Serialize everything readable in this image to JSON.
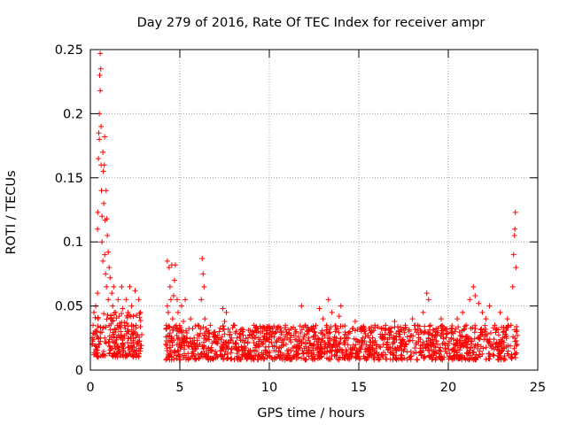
{
  "chart_data": {
    "type": "scatter",
    "title": "Day 279 of 2016, Rate Of TEC Index for receiver ampr",
    "xlabel": "GPS time / hours",
    "ylabel": "ROTI / TECUs",
    "xlim": [
      0,
      25
    ],
    "ylim": [
      0,
      0.25
    ],
    "xticks": [
      0,
      5,
      10,
      15,
      20,
      25
    ],
    "xtick_labels": [
      "0",
      "5",
      "10",
      "15",
      "20",
      "25"
    ],
    "yticks": [
      0,
      0.05,
      0.1,
      0.15,
      0.2,
      0.25
    ],
    "ytick_labels": [
      "0",
      "0.05",
      "0.1",
      "0.15",
      "0.2",
      "0.25"
    ],
    "grid": true,
    "marker": "+",
    "series": [
      {
        "name": "ROTI",
        "color": "#ff0000",
        "points": [
          [
            0.1,
            0.02
          ],
          [
            0.15,
            0.035
          ],
          [
            0.2,
            0.045
          ],
          [
            0.25,
            0.028
          ],
          [
            0.3,
            0.015
          ],
          [
            0.3,
            0.05
          ],
          [
            0.35,
            0.03
          ],
          [
            0.4,
            0.06
          ],
          [
            0.4,
            0.11
          ],
          [
            0.42,
            0.123
          ],
          [
            0.45,
            0.165
          ],
          [
            0.47,
            0.185
          ],
          [
            0.5,
            0.2
          ],
          [
            0.5,
            0.18
          ],
          [
            0.52,
            0.23
          ],
          [
            0.55,
            0.247
          ],
          [
            0.55,
            0.218
          ],
          [
            0.58,
            0.235
          ],
          [
            0.6,
            0.19
          ],
          [
            0.6,
            0.16
          ],
          [
            0.62,
            0.14
          ],
          [
            0.65,
            0.12
          ],
          [
            0.65,
            0.1
          ],
          [
            0.7,
            0.085
          ],
          [
            0.7,
            0.17
          ],
          [
            0.72,
            0.155
          ],
          [
            0.75,
            0.13
          ],
          [
            0.78,
            0.16
          ],
          [
            0.8,
            0.09
          ],
          [
            0.8,
            0.182
          ],
          [
            0.82,
            0.117
          ],
          [
            0.85,
            0.075
          ],
          [
            0.88,
            0.14
          ],
          [
            0.9,
            0.065
          ],
          [
            0.92,
            0.118
          ],
          [
            0.95,
            0.105
          ],
          [
            1.0,
            0.092
          ],
          [
            1.0,
            0.055
          ],
          [
            1.05,
            0.08
          ],
          [
            1.1,
            0.072
          ],
          [
            1.15,
            0.04
          ],
          [
            1.2,
            0.06
          ],
          [
            1.25,
            0.05
          ],
          [
            1.3,
            0.065
          ],
          [
            1.35,
            0.032
          ],
          [
            1.4,
            0.045
          ],
          [
            1.5,
            0.035
          ],
          [
            1.55,
            0.055
          ],
          [
            1.6,
            0.042
          ],
          [
            1.7,
            0.03
          ],
          [
            1.75,
            0.065
          ],
          [
            1.8,
            0.048
          ],
          [
            1.9,
            0.035
          ],
          [
            2.0,
            0.055
          ],
          [
            2.05,
            0.03
          ],
          [
            2.1,
            0.045
          ],
          [
            2.15,
            0.018
          ],
          [
            2.2,
            0.065
          ],
          [
            2.3,
            0.05
          ],
          [
            2.35,
            0.028
          ],
          [
            2.4,
            0.042
          ],
          [
            2.45,
            0.015
          ],
          [
            2.5,
            0.062
          ],
          [
            2.55,
            0.035
          ],
          [
            2.6,
            0.02
          ],
          [
            2.7,
            0.055
          ],
          [
            2.8,
            0.045
          ],
          [
            0.2,
            0.012
          ],
          [
            0.5,
            0.02
          ],
          [
            0.8,
            0.025
          ],
          [
            1.1,
            0.018
          ],
          [
            1.4,
            0.022
          ],
          [
            1.6,
            0.015
          ],
          [
            1.8,
            0.02
          ],
          [
            2.25,
            0.025
          ],
          [
            2.45,
            0.018
          ],
          [
            2.65,
            0.022
          ],
          [
            4.2,
            0.02
          ],
          [
            4.25,
            0.035
          ],
          [
            4.3,
            0.05
          ],
          [
            4.3,
            0.085
          ],
          [
            4.35,
            0.045
          ],
          [
            4.4,
            0.08
          ],
          [
            4.45,
            0.065
          ],
          [
            4.5,
            0.055
          ],
          [
            4.55,
            0.082
          ],
          [
            4.6,
            0.04
          ],
          [
            4.65,
            0.058
          ],
          [
            4.7,
            0.07
          ],
          [
            4.75,
            0.082
          ],
          [
            4.8,
            0.035
          ],
          [
            4.85,
            0.055
          ],
          [
            4.9,
            0.045
          ],
          [
            5.0,
            0.03
          ],
          [
            5.1,
            0.05
          ],
          [
            5.2,
            0.038
          ],
          [
            5.3,
            0.055
          ],
          [
            5.4,
            0.025
          ],
          [
            5.6,
            0.04
          ],
          [
            5.8,
            0.025
          ],
          [
            6.0,
            0.035
          ],
          [
            6.1,
            0.02
          ],
          [
            6.2,
            0.055
          ],
          [
            6.25,
            0.087
          ],
          [
            6.3,
            0.075
          ],
          [
            6.35,
            0.065
          ],
          [
            6.4,
            0.04
          ],
          [
            6.5,
            0.03
          ],
          [
            6.7,
            0.035
          ],
          [
            7.0,
            0.025
          ],
          [
            7.2,
            0.03
          ],
          [
            7.4,
            0.048
          ],
          [
            7.5,
            0.038
          ],
          [
            7.6,
            0.045
          ],
          [
            7.8,
            0.028
          ],
          [
            8.0,
            0.035
          ],
          [
            8.2,
            0.025
          ],
          [
            8.5,
            0.03
          ],
          [
            8.8,
            0.022
          ],
          [
            9.0,
            0.028
          ],
          [
            9.2,
            0.015
          ],
          [
            9.4,
            0.025
          ],
          [
            9.6,
            0.02
          ],
          [
            9.8,
            0.018
          ],
          [
            10.0,
            0.022
          ],
          [
            10.2,
            0.03
          ],
          [
            10.4,
            0.018
          ],
          [
            10.6,
            0.025
          ],
          [
            10.8,
            0.02
          ],
          [
            11.0,
            0.028
          ],
          [
            11.2,
            0.022
          ],
          [
            11.5,
            0.03
          ],
          [
            11.8,
            0.05
          ],
          [
            12.0,
            0.035
          ],
          [
            12.2,
            0.025
          ],
          [
            12.5,
            0.03
          ],
          [
            12.8,
            0.048
          ],
          [
            13.0,
            0.04
          ],
          [
            13.2,
            0.035
          ],
          [
            13.3,
            0.055
          ],
          [
            13.5,
            0.045
          ],
          [
            13.7,
            0.03
          ],
          [
            13.9,
            0.042
          ],
          [
            14.0,
            0.05
          ],
          [
            14.2,
            0.025
          ],
          [
            14.5,
            0.03
          ],
          [
            14.8,
            0.038
          ],
          [
            15.0,
            0.022
          ],
          [
            15.3,
            0.03
          ],
          [
            15.6,
            0.025
          ],
          [
            15.9,
            0.035
          ],
          [
            16.2,
            0.028
          ],
          [
            16.5,
            0.035
          ],
          [
            16.8,
            0.03
          ],
          [
            17.0,
            0.038
          ],
          [
            17.3,
            0.028
          ],
          [
            17.6,
            0.035
          ],
          [
            18.0,
            0.04
          ],
          [
            18.3,
            0.032
          ],
          [
            18.6,
            0.045
          ],
          [
            18.8,
            0.06
          ],
          [
            18.9,
            0.055
          ],
          [
            19.0,
            0.035
          ],
          [
            19.3,
            0.03
          ],
          [
            19.6,
            0.04
          ],
          [
            19.9,
            0.028
          ],
          [
            20.2,
            0.032
          ],
          [
            20.5,
            0.04
          ],
          [
            20.8,
            0.045
          ],
          [
            21.0,
            0.035
          ],
          [
            21.2,
            0.055
          ],
          [
            21.4,
            0.065
          ],
          [
            21.5,
            0.058
          ],
          [
            21.7,
            0.052
          ],
          [
            21.9,
            0.045
          ],
          [
            22.1,
            0.04
          ],
          [
            22.3,
            0.05
          ],
          [
            22.6,
            0.035
          ],
          [
            22.9,
            0.045
          ],
          [
            23.1,
            0.03
          ],
          [
            23.3,
            0.04
          ],
          [
            23.5,
            0.035
          ],
          [
            23.6,
            0.065
          ],
          [
            23.65,
            0.09
          ],
          [
            23.7,
            0.105
          ],
          [
            23.72,
            0.11
          ],
          [
            23.75,
            0.123
          ],
          [
            23.78,
            0.08
          ],
          [
            23.8,
            0.03
          ],
          [
            23.85,
            0.02
          ],
          [
            4.5,
            0.015
          ],
          [
            5.0,
            0.012
          ],
          [
            5.5,
            0.018
          ],
          [
            6.5,
            0.015
          ],
          [
            7.5,
            0.012
          ],
          [
            8.5,
            0.015
          ],
          [
            9.5,
            0.01
          ],
          [
            10.5,
            0.012
          ],
          [
            11.5,
            0.015
          ],
          [
            12.5,
            0.012
          ],
          [
            13.5,
            0.015
          ],
          [
            14.5,
            0.012
          ],
          [
            15.5,
            0.01
          ],
          [
            16.5,
            0.012
          ],
          [
            17.5,
            0.015
          ],
          [
            18.5,
            0.012
          ],
          [
            19.5,
            0.015
          ],
          [
            20.5,
            0.012
          ],
          [
            21.5,
            0.01
          ],
          [
            22.5,
            0.012
          ],
          [
            23.5,
            0.01
          ],
          [
            11.0,
            0.015
          ],
          [
            13.8,
            0.018
          ],
          [
            16.0,
            0.02
          ],
          [
            19.0,
            0.02
          ],
          [
            21.0,
            0.018
          ]
        ]
      }
    ],
    "dense_bands": [
      {
        "x_start": 0.1,
        "x_end": 2.9,
        "y_low": 0.01,
        "y_high": 0.045
      },
      {
        "x_start": 4.2,
        "x_end": 23.9,
        "y_low": 0.008,
        "y_high": 0.035
      }
    ]
  }
}
